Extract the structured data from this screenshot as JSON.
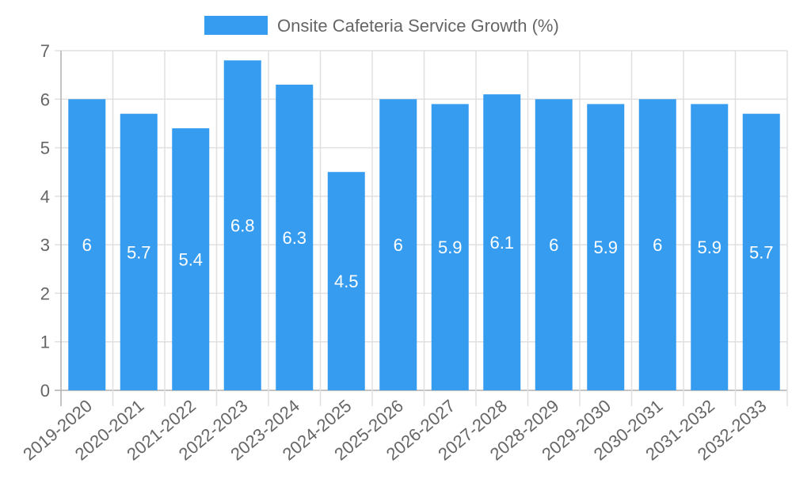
{
  "chart_data": {
    "type": "bar",
    "title": "",
    "legend": {
      "label": "Onsite Cafeteria Service Growth (%)",
      "position": "top"
    },
    "categories": [
      "2019-2020",
      "2020-2021",
      "2021-2022",
      "2022-2023",
      "2023-2024",
      "2024-2025",
      "2025-2026",
      "2026-2027",
      "2027-2028",
      "2028-2029",
      "2029-2030",
      "2030-2031",
      "2031-2032",
      "2032-2033"
    ],
    "series": [
      {
        "name": "Onsite Cafeteria Service Growth (%)",
        "values": [
          6,
          5.7,
          5.4,
          6.8,
          6.3,
          4.5,
          6,
          5.9,
          6.1,
          6,
          5.9,
          6,
          5.9,
          5.7
        ]
      }
    ],
    "ylim": [
      0,
      7
    ],
    "yticks": [
      0,
      1,
      2,
      3,
      4,
      5,
      6,
      7
    ],
    "xlabel": "",
    "ylabel": "",
    "grid": true,
    "colors": {
      "bar": "#369cf0",
      "text": "#666666",
      "grid": "#e0e0e0",
      "data_label": "#ffffff"
    }
  }
}
